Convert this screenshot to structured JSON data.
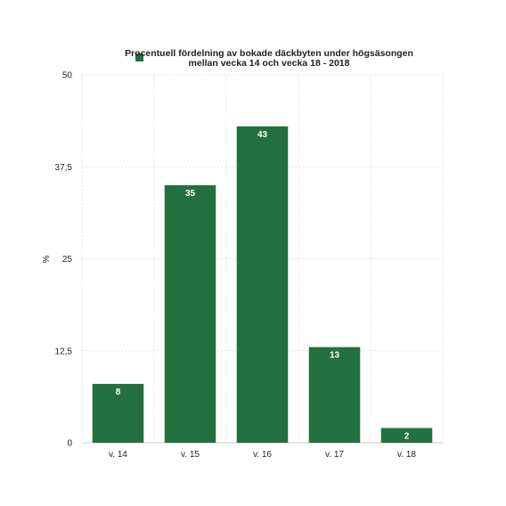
{
  "chart_data": {
    "type": "bar",
    "legend": {
      "label_lines": [
        "Procentuell fördelning av bokade däckbyten under högsäsongen",
        "mellan vecka 14 och vecka 18 - 2018"
      ],
      "placement": "top"
    },
    "categories": [
      "v. 14",
      "v. 15",
      "v. 16",
      "v. 17",
      "v. 18"
    ],
    "series": [
      {
        "name": "Procentuell fördelning av bokade däckbyten under högsäsongen mellan vecka 14 och vecka 18 - 2018",
        "values": [
          8,
          35,
          43,
          13,
          2
        ],
        "color": "#23703f"
      }
    ],
    "ylabel": "%",
    "ylim": [
      0,
      50
    ],
    "yticks": [
      "0",
      "12,5",
      "25",
      "37,5",
      "50"
    ],
    "grid": true,
    "data_labels": [
      "8",
      "35",
      "43",
      "13",
      "2"
    ]
  }
}
